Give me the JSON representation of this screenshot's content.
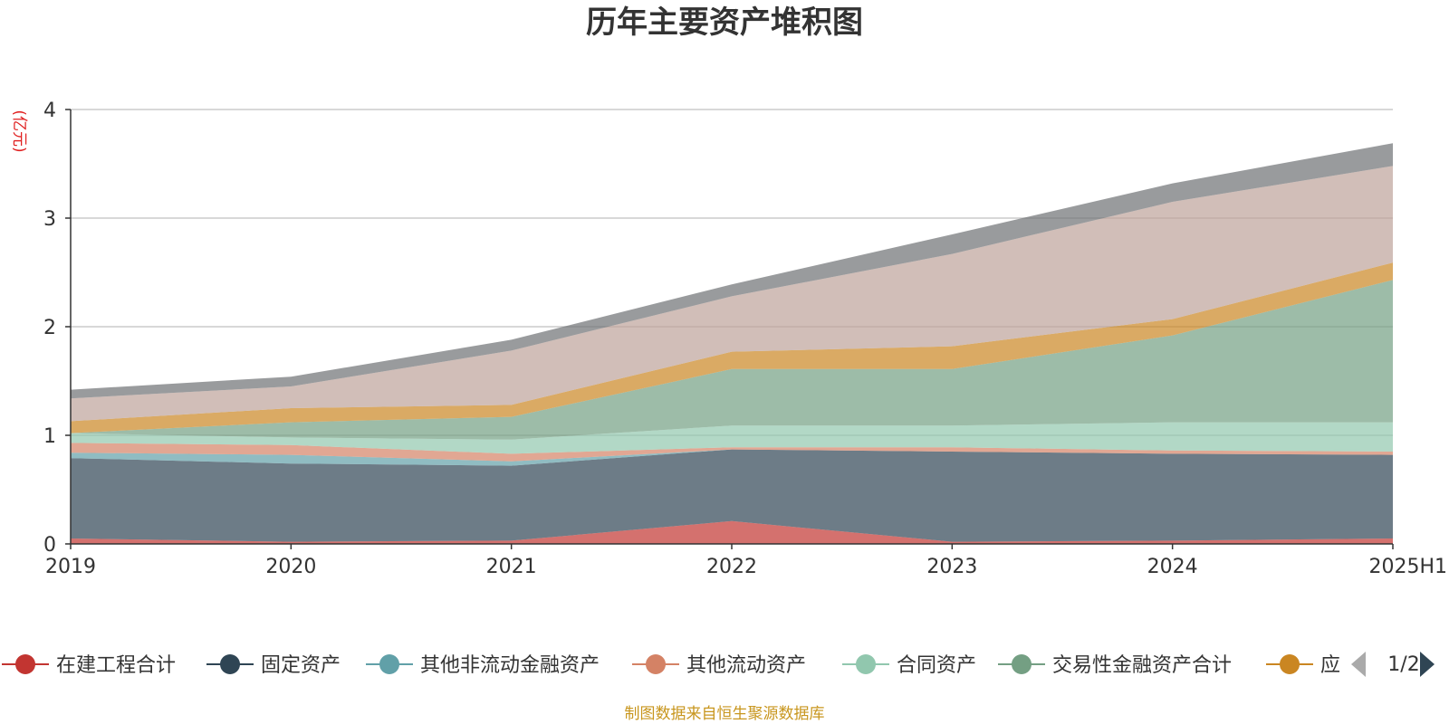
{
  "chart_data": {
    "type": "area",
    "stacked": true,
    "title": "历年主要资产堆积图",
    "unit_label": "(亿元)",
    "xlabel": "",
    "ylabel": "",
    "ylim": [
      0,
      4
    ],
    "yticks": [
      "0",
      "1",
      "2",
      "3",
      "4"
    ],
    "grid": true,
    "legend_position": "bottom",
    "categories": [
      "2019",
      "2020",
      "2021",
      "2022",
      "2023",
      "2024",
      "2025H1"
    ],
    "series": [
      {
        "name": "在建工程合计",
        "color": "#c23531",
        "values": [
          0.05,
          0.02,
          0.03,
          0.21,
          0.02,
          0.03,
          0.05
        ]
      },
      {
        "name": "固定资产",
        "color": "#2f4554",
        "values": [
          0.74,
          0.72,
          0.69,
          0.66,
          0.83,
          0.8,
          0.77
        ]
      },
      {
        "name": "其他非流动金融资产",
        "color": "#61a0a8",
        "values": [
          0.05,
          0.08,
          0.04,
          0.0,
          0.0,
          0.0,
          0.0
        ]
      },
      {
        "name": "其他流动资产",
        "color": "#d48265",
        "values": [
          0.09,
          0.09,
          0.07,
          0.02,
          0.04,
          0.03,
          0.03
        ]
      },
      {
        "name": "合同资产",
        "color": "#91c7ae",
        "values": [
          0.09,
          0.07,
          0.13,
          0.2,
          0.2,
          0.26,
          0.27
        ]
      },
      {
        "name": "交易性金融资产合计",
        "color": "#749f83",
        "values": [
          0.0,
          0.14,
          0.21,
          0.52,
          0.52,
          0.8,
          1.31
        ]
      },
      {
        "name": "应",
        "color": "#ca8622",
        "values": [
          0.11,
          0.13,
          0.11,
          0.16,
          0.21,
          0.15,
          0.16
        ]
      },
      {
        "name": "",
        "color": "#bda29a",
        "values": [
          0.21,
          0.2,
          0.5,
          0.51,
          0.85,
          1.08,
          0.89
        ]
      },
      {
        "name": "",
        "color": "#6e7074",
        "values": [
          0.08,
          0.09,
          0.1,
          0.11,
          0.18,
          0.17,
          0.21
        ]
      }
    ]
  },
  "legend": {
    "page_indicator": "1/2",
    "prev_icon": "triangle-left-icon",
    "next_icon": "triangle-right-icon"
  },
  "footer": {
    "source": "制图数据来自恒生聚源数据库"
  }
}
